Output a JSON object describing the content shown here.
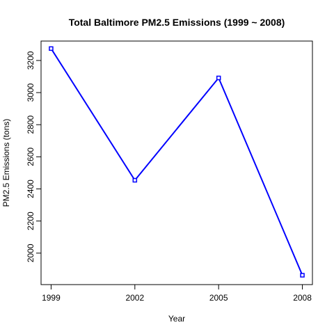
{
  "chart_data": {
    "type": "line",
    "title": "Total Baltimore PM2.5 Emissions (1999 ~ 2008)",
    "xlabel": "Year",
    "ylabel": "PM2.5 Emissions (tons)",
    "x": [
      1999,
      2002,
      2005,
      2008
    ],
    "series": [
      {
        "values": [
          3274.18,
          2453.92,
          3091.35,
          1862.28
        ]
      }
    ],
    "xticks": [
      1999,
      2002,
      2005,
      2008
    ],
    "yticks": [
      2000,
      2200,
      2400,
      2600,
      2800,
      3000,
      3200
    ],
    "xlim": [
      1998.64,
      2008.36
    ],
    "ylim": [
      1804.0,
      3321.0
    ],
    "grid": false,
    "line_color": "#0000ff",
    "point_marker": "open-square"
  }
}
